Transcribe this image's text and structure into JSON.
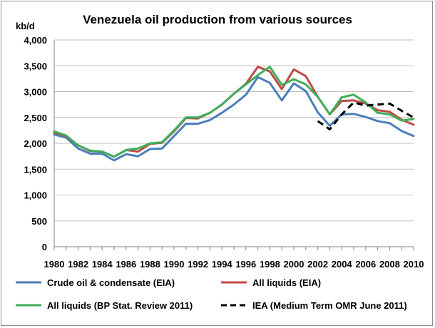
{
  "chart_data": {
    "type": "line",
    "title": "Venezuela oil production from various sources",
    "ylabel": "kb/d",
    "xlabel": "",
    "ylim": [
      0,
      4000
    ],
    "yticks": [
      "0",
      "500",
      "1,000",
      "1,500",
      "2,000",
      "2,500",
      "3,000",
      "3,500",
      "4,000"
    ],
    "ytick_values": [
      0,
      500,
      1000,
      1500,
      2000,
      2500,
      3000,
      3500,
      4000
    ],
    "x": [
      1980,
      1981,
      1982,
      1983,
      1984,
      1985,
      1986,
      1987,
      1988,
      1989,
      1990,
      1991,
      1992,
      1993,
      1994,
      1995,
      1996,
      1997,
      1998,
      1999,
      2000,
      2001,
      2002,
      2003,
      2004,
      2005,
      2006,
      2007,
      2008,
      2009,
      2010
    ],
    "xticks": [
      "1980",
      "1982",
      "1984",
      "1986",
      "1988",
      "1990",
      "1992",
      "1994",
      "1996",
      "1998",
      "2000",
      "2002",
      "2004",
      "2006",
      "2008",
      "2010"
    ],
    "grid": true,
    "legend_position": "bottom",
    "series": [
      {
        "name": "Crude oil & condensate (EIA)",
        "color": "#4a7ebb",
        "dash": "solid",
        "x": [
          1980,
          1981,
          1982,
          1983,
          1984,
          1985,
          1986,
          1987,
          1988,
          1989,
          1990,
          1991,
          1992,
          1993,
          1994,
          1995,
          1996,
          1997,
          1998,
          1999,
          2000,
          2001,
          2002,
          2003,
          2004,
          2005,
          2006,
          2007,
          2008,
          2009,
          2010
        ],
        "values": [
          2170,
          2110,
          1900,
          1800,
          1800,
          1670,
          1790,
          1750,
          1890,
          1900,
          2140,
          2380,
          2380,
          2450,
          2590,
          2750,
          2940,
          3280,
          3170,
          2830,
          3160,
          3010,
          2600,
          2340,
          2560,
          2570,
          2510,
          2430,
          2390,
          2240,
          2140
        ]
      },
      {
        "name": "All liquids (EIA)",
        "color": "#be4b48",
        "dash": "solid",
        "x": [
          1980,
          1981,
          1982,
          1983,
          1984,
          1985,
          1986,
          1987,
          1988,
          1989,
          1990,
          1991,
          1992,
          1993,
          1994,
          1995,
          1996,
          1997,
          1998,
          1999,
          2000,
          2001,
          2002,
          2003,
          2004,
          2005,
          2006,
          2007,
          2008,
          2009,
          2010
        ],
        "values": [
          2210,
          2140,
          1960,
          1850,
          1840,
          1740,
          1870,
          1840,
          1990,
          2010,
          2230,
          2490,
          2480,
          2590,
          2750,
          2960,
          3150,
          3480,
          3390,
          3050,
          3430,
          3300,
          2900,
          2560,
          2820,
          2830,
          2770,
          2640,
          2610,
          2460,
          2360
        ]
      },
      {
        "name": "All liquids (BP Stat. Review 2011)",
        "color": "#3eaf5b",
        "dash": "solid",
        "x": [
          1980,
          1981,
          1982,
          1983,
          1984,
          1985,
          1986,
          1987,
          1988,
          1989,
          1990,
          1991,
          1992,
          1993,
          1994,
          1995,
          1996,
          1997,
          1998,
          1999,
          2000,
          2001,
          2002,
          2003,
          2004,
          2005,
          2006,
          2007,
          2008,
          2009,
          2010
        ],
        "values": [
          2230,
          2150,
          1960,
          1860,
          1840,
          1740,
          1870,
          1900,
          2000,
          2020,
          2250,
          2500,
          2500,
          2590,
          2750,
          2960,
          3140,
          3320,
          3480,
          3130,
          3240,
          3140,
          2900,
          2560,
          2890,
          2940,
          2790,
          2590,
          2560,
          2440,
          2470
        ]
      },
      {
        "name": "IEA (Medium Term OMR June 2011)",
        "color": "#000000",
        "dash": "dashed",
        "x": [
          2002,
          2003,
          2004,
          2005,
          2006,
          2007,
          2008,
          2009,
          2010
        ],
        "values": [
          2430,
          2270,
          2560,
          2790,
          2730,
          2750,
          2770,
          2630,
          2500
        ]
      }
    ]
  }
}
